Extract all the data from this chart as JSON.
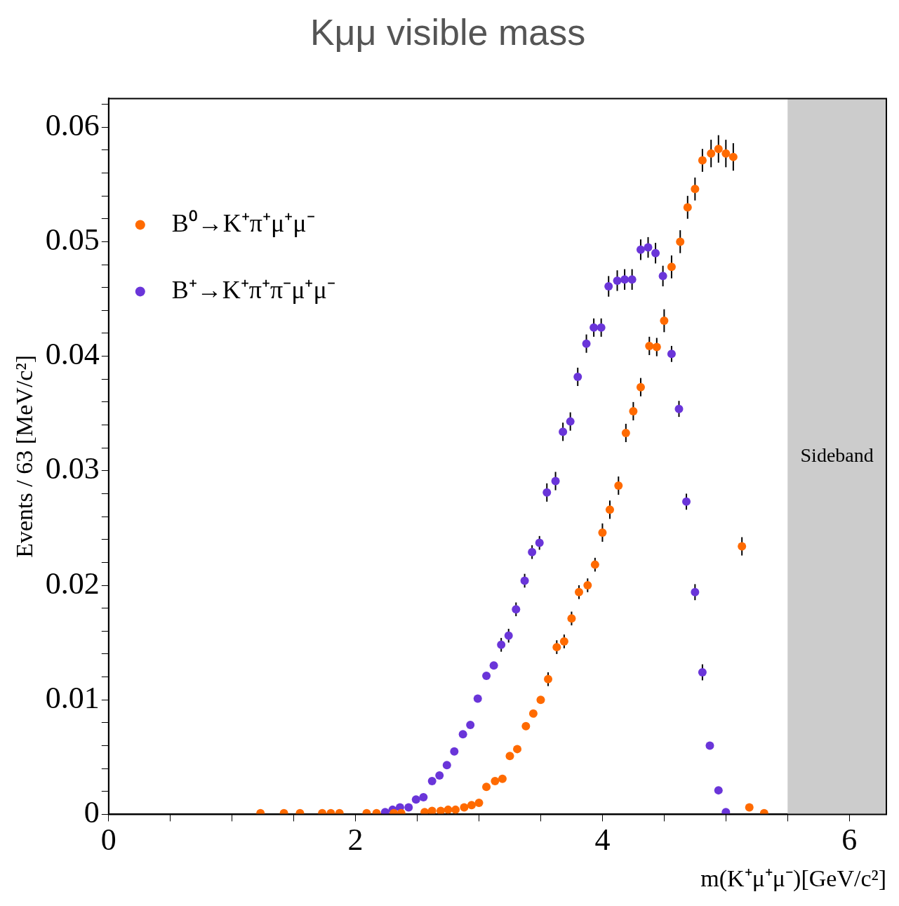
{
  "chart_data": {
    "type": "scatter",
    "title": "Kμμ visible mass",
    "xlabel": "m(K⁺μ⁺μ⁻)[GeV/c²]",
    "ylabel": "Events / 63 [MeV/c²]",
    "xlim": [
      0,
      6.3
    ],
    "ylim": [
      0,
      0.0625
    ],
    "xticks": [
      0,
      {
        "value": 0.5,
        "label": null
      },
      {
        "value": 1,
        "label": null
      },
      {
        "value": 1.5,
        "label": null
      },
      2,
      {
        "value": 2.5,
        "label": null
      },
      {
        "value": 3,
        "label": null
      },
      {
        "value": 3.5,
        "label": null
      },
      4,
      {
        "value": 4.5,
        "label": null
      },
      {
        "value": 5,
        "label": null
      },
      {
        "value": 5.5,
        "label": null
      },
      6
    ],
    "yticks": [
      0,
      {
        "value": 0.002,
        "label": null
      },
      {
        "value": 0.004,
        "label": null
      },
      {
        "value": 0.006,
        "label": null
      },
      {
        "value": 0.008,
        "label": null
      },
      0.01,
      {
        "value": 0.012,
        "label": null
      },
      {
        "value": 0.014,
        "label": null
      },
      {
        "value": 0.016,
        "label": null
      },
      {
        "value": 0.018,
        "label": null
      },
      0.02,
      {
        "value": 0.022,
        "label": null
      },
      {
        "value": 0.024,
        "label": null
      },
      {
        "value": 0.026,
        "label": null
      },
      {
        "value": 0.028,
        "label": null
      },
      0.03,
      {
        "value": 0.032,
        "label": null
      },
      {
        "value": 0.034,
        "label": null
      },
      {
        "value": 0.036,
        "label": null
      },
      {
        "value": 0.038,
        "label": null
      },
      0.04,
      {
        "value": 0.042,
        "label": null
      },
      {
        "value": 0.044,
        "label": null
      },
      {
        "value": 0.046,
        "label": null
      },
      {
        "value": 0.048,
        "label": null
      },
      0.05,
      {
        "value": 0.052,
        "label": null
      },
      {
        "value": 0.054,
        "label": null
      },
      {
        "value": 0.056,
        "label": null
      },
      {
        "value": 0.058,
        "label": null
      },
      0.06,
      {
        "value": 0.062,
        "label": null
      }
    ],
    "grid": false,
    "legend": "top left",
    "marker": "circle",
    "bands": [
      {
        "axis": "x",
        "from": 5.5,
        "to": 6.3,
        "label": "Sideband",
        "color": "#cccccc"
      }
    ],
    "series": [
      {
        "name": "B⁰→K⁺π⁺μ⁺μ⁻",
        "color": "#ff6a00",
        "x": [
          1.23,
          1.42,
          1.55,
          1.73,
          1.8,
          1.87,
          2.09,
          2.17,
          2.31,
          2.37,
          2.56,
          2.62,
          2.69,
          2.75,
          2.81,
          2.88,
          2.94,
          3.0,
          3.06,
          3.13,
          3.19,
          3.25,
          3.31,
          3.38,
          3.44,
          3.5,
          3.56,
          3.63,
          3.69,
          3.75,
          3.81,
          3.88,
          3.94,
          4.0,
          4.06,
          4.13,
          4.19,
          4.25,
          4.31,
          4.38,
          4.44,
          4.5,
          4.56,
          4.63,
          4.69,
          4.75,
          4.81,
          4.88,
          4.94,
          5.0,
          5.06,
          5.13,
          5.19,
          5.31
        ],
        "values": [
          0.0001,
          0.0001,
          0.0001,
          0.0001,
          0.0001,
          0.0001,
          0.0001,
          0.0001,
          0.0001,
          0.0001,
          0.0002,
          0.0003,
          0.0003,
          0.0004,
          0.0004,
          0.0006,
          0.0008,
          0.001,
          0.0024,
          0.0029,
          0.0031,
          0.0051,
          0.0057,
          0.0077,
          0.0088,
          0.01,
          0.0118,
          0.0146,
          0.0151,
          0.0171,
          0.0194,
          0.02,
          0.0218,
          0.0246,
          0.0266,
          0.0287,
          0.0333,
          0.0352,
          0.0373,
          0.0409,
          0.0408,
          0.0431,
          0.0478,
          0.05,
          0.053,
          0.0546,
          0.0571,
          0.0577,
          0.0581,
          0.0577,
          0.0574,
          0.0234,
          0.0006,
          0.0001
        ],
        "errors": [
          null,
          null,
          null,
          null,
          null,
          null,
          null,
          null,
          null,
          null,
          null,
          null,
          null,
          null,
          null,
          null,
          null,
          null,
          null,
          null,
          null,
          null,
          null,
          null,
          null,
          null,
          0.0006,
          0.0006,
          0.0006,
          0.0006,
          0.0006,
          0.0006,
          0.0006,
          0.0008,
          0.0008,
          0.0008,
          0.0008,
          0.0008,
          0.0008,
          0.0008,
          0.0008,
          0.001,
          0.001,
          0.001,
          0.001,
          0.001,
          0.001,
          0.0012,
          0.0012,
          0.0012,
          0.0012,
          0.0008,
          null,
          null
        ]
      },
      {
        "name": "B⁺→K⁺π⁺π⁻μ⁺μ⁻",
        "color": "#6a35d9",
        "x": [
          2.24,
          2.3,
          2.36,
          2.43,
          2.49,
          2.55,
          2.62,
          2.68,
          2.74,
          2.8,
          2.87,
          2.93,
          2.99,
          3.06,
          3.12,
          3.18,
          3.24,
          3.3,
          3.37,
          3.43,
          3.49,
          3.55,
          3.62,
          3.68,
          3.74,
          3.8,
          3.87,
          3.93,
          3.99,
          4.05,
          4.12,
          4.18,
          4.24,
          4.31,
          4.37,
          4.43,
          4.49,
          4.56,
          4.62,
          4.68,
          4.75,
          4.81,
          4.87,
          4.94,
          5.0
        ],
        "values": [
          0.0002,
          0.0004,
          0.0006,
          0.0006,
          0.0013,
          0.0015,
          0.0029,
          0.0034,
          0.0043,
          0.0055,
          0.007,
          0.0078,
          0.0101,
          0.0121,
          0.013,
          0.0148,
          0.0156,
          0.0179,
          0.0204,
          0.0229,
          0.0237,
          0.0281,
          0.0291,
          0.0334,
          0.0343,
          0.0382,
          0.0411,
          0.0425,
          0.0425,
          0.0461,
          0.0466,
          0.0467,
          0.0467,
          0.0493,
          0.0495,
          0.049,
          0.047,
          0.0402,
          0.0354,
          0.0273,
          0.0194,
          0.0124,
          0.006,
          0.0021,
          0.0002
        ],
        "errors": [
          null,
          null,
          null,
          null,
          null,
          null,
          null,
          null,
          null,
          null,
          null,
          null,
          null,
          null,
          null,
          0.0006,
          0.0006,
          0.0006,
          0.0006,
          0.0006,
          0.0006,
          0.0008,
          0.0008,
          0.0008,
          0.0008,
          0.0008,
          0.0008,
          0.0008,
          0.0008,
          0.0009,
          0.0009,
          0.0009,
          0.0009,
          0.0009,
          0.0009,
          0.0009,
          0.0009,
          0.0007,
          0.0007,
          0.0007,
          0.0007,
          0.0007,
          null,
          null,
          null
        ]
      }
    ]
  }
}
